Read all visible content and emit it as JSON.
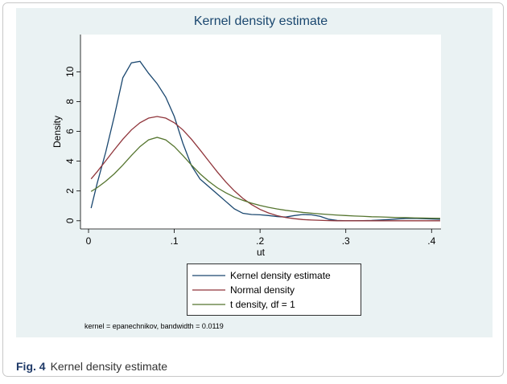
{
  "chart_data": {
    "type": "line",
    "title": "Kernel density estimate",
    "x_label": "ut",
    "y_label": "Density",
    "note": "kernel = epanechnikov, bandwidth = 0.0119",
    "x": [
      0.003,
      0.01,
      0.02,
      0.03,
      0.04,
      0.05,
      0.06,
      0.07,
      0.08,
      0.09,
      0.1,
      0.11,
      0.12,
      0.13,
      0.14,
      0.15,
      0.16,
      0.17,
      0.18,
      0.19,
      0.2,
      0.21,
      0.22,
      0.23,
      0.24,
      0.25,
      0.26,
      0.27,
      0.28,
      0.29,
      0.3,
      0.31,
      0.32,
      0.33,
      0.34,
      0.35,
      0.36,
      0.37,
      0.38,
      0.39,
      0.4,
      0.41
    ],
    "series": [
      {
        "name": "Kernel density estimate",
        "color": "#1a476f",
        "values": [
          0.85,
          2.5,
          4.6,
          7.0,
          9.6,
          10.6,
          10.7,
          9.9,
          9.2,
          8.3,
          7.0,
          5.2,
          3.7,
          2.8,
          2.3,
          1.8,
          1.3,
          0.8,
          0.5,
          0.42,
          0.4,
          0.35,
          0.28,
          0.25,
          0.35,
          0.42,
          0.4,
          0.3,
          0.1,
          0.02,
          0,
          0,
          0.01,
          0.02,
          0.05,
          0.08,
          0.12,
          0.15,
          0.16,
          0.14,
          0.12,
          0.1
        ]
      },
      {
        "name": "Normal density",
        "color": "#90353b",
        "values": [
          2.81,
          3.29,
          4.02,
          4.76,
          5.47,
          6.1,
          6.58,
          6.89,
          7.0,
          6.89,
          6.58,
          6.1,
          5.47,
          4.76,
          4.02,
          3.29,
          2.61,
          2.01,
          1.5,
          1.09,
          0.76,
          0.52,
          0.34,
          0.22,
          0.14,
          0.08,
          0.05,
          0.03,
          0.01,
          0,
          0,
          0,
          0,
          0,
          0,
          0,
          0,
          0,
          0,
          0,
          0,
          0
        ]
      },
      {
        "name": "t density, df = 1",
        "color": "#55752f",
        "values": [
          1.97,
          2.22,
          2.65,
          3.15,
          3.74,
          4.38,
          4.98,
          5.43,
          5.6,
          5.43,
          4.98,
          4.38,
          3.74,
          3.15,
          2.65,
          2.22,
          1.88,
          1.59,
          1.37,
          1.18,
          1.03,
          0.9,
          0.79,
          0.7,
          0.63,
          0.56,
          0.51,
          0.46,
          0.42,
          0.38,
          0.35,
          0.32,
          0.3,
          0.27,
          0.26,
          0.24,
          0.22,
          0.21,
          0.19,
          0.18,
          0.17,
          0.16
        ]
      }
    ],
    "xlim": [
      -0.0094,
      0.411
    ],
    "ylim": [
      -0.55,
      12.5
    ],
    "xticks": [
      0,
      {
        "value": 0.1,
        "label": ".1"
      },
      {
        "value": 0.2,
        "label": ".2"
      },
      {
        "value": 0.3,
        "label": ".3"
      },
      {
        "value": 0.4,
        "label": ".4"
      }
    ],
    "yticks": [
      0,
      2,
      4,
      6,
      8,
      10
    ],
    "grid": false,
    "legend": "bottom"
  },
  "caption": {
    "label": "Fig. 4",
    "text": "Kernel density estimate"
  }
}
